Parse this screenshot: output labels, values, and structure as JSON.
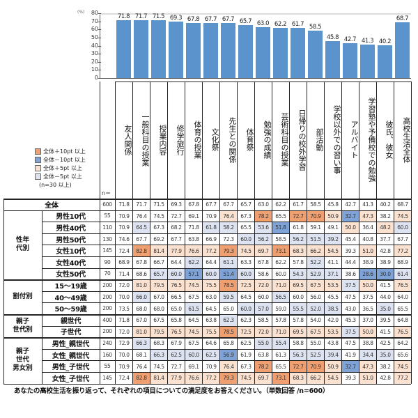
{
  "chart_data": {
    "type": "bar",
    "ylabel": "(%)",
    "ylim": [
      0,
      80
    ],
    "yticks": [
      0,
      10,
      20,
      30,
      40,
      50,
      60,
      70,
      80
    ],
    "grid": false,
    "categories": [
      "友人関係",
      "一般科目の授業",
      "授業内容",
      "修学旅行",
      "体育の授業",
      "文化祭",
      "先生との関係",
      "体育祭",
      "勉強の成績",
      "芸術科目の授業",
      "日帰りの校外学習",
      "部活動",
      "学校以外での習い事",
      "アルバイト",
      "学習塾や予備校での勉強",
      "彼氏、彼女",
      "高校生活全体"
    ],
    "values": [
      71.8,
      71.7,
      71.5,
      69.3,
      67.8,
      67.7,
      67.7,
      65.7,
      63.0,
      62.2,
      61.7,
      58.5,
      45.8,
      42.7,
      41.3,
      40.2,
      68.7
    ],
    "bar_color": "#5b93cc"
  },
  "legend": {
    "items": [
      {
        "label": "全体＋10pt 以上",
        "color": "#f0a070"
      },
      {
        "label": "全体－10pt 以上",
        "color": "#7fa3d6"
      },
      {
        "label": "全体＋5pt 以上",
        "color": "#fbe1cf"
      },
      {
        "label": "全体－5pt 以上",
        "color": "#dde3f0"
      }
    ],
    "note": "(n=30 以上)",
    "n_label": "n＝"
  },
  "table": {
    "total": {
      "label": "全体",
      "n": 600,
      "values": [
        71.8,
        71.7,
        71.5,
        69.3,
        67.8,
        67.7,
        67.7,
        65.7,
        63.0,
        62.2,
        61.7,
        58.5,
        45.8,
        42.7,
        41.3,
        40.2,
        68.7
      ]
    },
    "groups": [
      {
        "label": "性年\n代別",
        "rows": [
          {
            "label": "男性10代",
            "n": 55,
            "values": [
              70.9,
              76.4,
              74.5,
              72.7,
              69.1,
              70.9,
              76.4,
              67.3,
              78.2,
              65.5,
              72.7,
              70.9,
              50.9,
              32.7,
              47.3,
              38.2,
              74.5
            ]
          },
          {
            "label": "男性40代",
            "n": 110,
            "values": [
              70.9,
              64.5,
              67.3,
              68.2,
              71.8,
              61.8,
              58.2,
              65.5,
              53.6,
              51.8,
              61.8,
              59.1,
              49.1,
              50.0,
              36.4,
              48.2,
              60.0
            ]
          },
          {
            "label": "男性50代",
            "n": 130,
            "values": [
              74.6,
              67.7,
              69.2,
              67.7,
              63.8,
              66.9,
              72.3,
              60.0,
              56.2,
              58.5,
              56.2,
              51.5,
              39.2,
              45.4,
              40.8,
              37.7,
              67.7
            ]
          },
          {
            "label": "女性10代",
            "n": 145,
            "values": [
              72.4,
              82.8,
              81.4,
              77.9,
              76.6,
              77.2,
              79.3,
              74.5,
              69.7,
              73.1,
              68.3,
              66.2,
              54.5,
              39.3,
              51.0,
              42.8,
              77.2
            ]
          },
          {
            "label": "女性40代",
            "n": 90,
            "values": [
              68.9,
              67.8,
              66.7,
              64.4,
              62.2,
              64.4,
              61.1,
              63.3,
              67.8,
              62.2,
              57.8,
              52.2,
              41.1,
              44.4,
              38.9,
              38.9,
              68.9
            ]
          },
          {
            "label": "女性50代",
            "n": 70,
            "values": [
              71.4,
              68.6,
              65.7,
              60.0,
              57.1,
              60.0,
              51.4,
              60.0,
              58.6,
              60.0,
              54.3,
              52.9,
              37.1,
              38.6,
              28.6,
              30.0,
              61.4
            ]
          }
        ]
      },
      {
        "label": "割付別",
        "rows": [
          {
            "label": "15～19歳",
            "n": 200,
            "values": [
              72.0,
              81.0,
              79.5,
              76.5,
              74.5,
              75.5,
              78.5,
              72.5,
              72.0,
              71.0,
              69.5,
              67.5,
              53.5,
              37.5,
              50.0,
              41.5,
              76.5
            ]
          },
          {
            "label": "40～49歳",
            "n": 200,
            "values": [
              70.0,
              66.0,
              67.0,
              66.5,
              67.5,
              63.0,
              59.5,
              64.5,
              60.0,
              56.5,
              60.0,
              56.0,
              45.5,
              47.5,
              37.5,
              44.0,
              64.0
            ]
          },
          {
            "label": "50～59歳",
            "n": 200,
            "values": [
              73.5,
              68.0,
              68.0,
              65.0,
              61.5,
              64.5,
              65.0,
              60.0,
              57.0,
              59.0,
              55.5,
              52.0,
              38.5,
              43.0,
              36.5,
              35.0,
              65.5
            ]
          }
        ]
      },
      {
        "label": "親子\n世代別",
        "rows": [
          {
            "label": "親世代",
            "n": 400,
            "values": [
              71.8,
              67.0,
              67.5,
              65.8,
              64.5,
              63.8,
              62.3,
              62.3,
              58.5,
              57.8,
              57.8,
              54.0,
              42.0,
              45.3,
              37.0,
              39.5,
              64.8
            ]
          },
          {
            "label": "子世代",
            "n": 200,
            "values": [
              72.0,
              81.0,
              79.5,
              76.5,
              74.5,
              75.5,
              78.5,
              72.5,
              72.0,
              71.0,
              69.5,
              67.5,
              53.5,
              37.5,
              50.0,
              41.5,
              76.5
            ]
          }
        ]
      },
      {
        "label": "親子\n世代\n男女別",
        "rows": [
          {
            "label": "男性_親世代",
            "n": 240,
            "values": [
              72.9,
              66.3,
              68.3,
              67.9,
              67.5,
              64.6,
              65.8,
              62.5,
              55.0,
              55.4,
              58.8,
              55.0,
              43.8,
              47.5,
              38.8,
              42.5,
              64.2
            ]
          },
          {
            "label": "女性_親世代",
            "n": 160,
            "values": [
              70.0,
              68.1,
              66.3,
              62.5,
              60.0,
              62.5,
              56.9,
              61.9,
              63.8,
              61.3,
              56.3,
              52.5,
              39.4,
              41.9,
              34.4,
              35.0,
              65.6
            ]
          },
          {
            "label": "男性_子世代",
            "n": 55,
            "values": [
              70.9,
              76.4,
              74.5,
              72.7,
              69.1,
              70.9,
              76.4,
              67.3,
              78.2,
              65.5,
              72.7,
              70.9,
              50.9,
              32.7,
              47.3,
              38.2,
              74.5
            ]
          },
          {
            "label": "女性_子世代",
            "n": 145,
            "values": [
              72.4,
              82.8,
              81.4,
              77.9,
              76.6,
              77.2,
              79.3,
              74.5,
              69.7,
              73.1,
              68.3,
              66.2,
              54.5,
              39.3,
              51.0,
              42.8,
              77.2
            ]
          }
        ]
      }
    ]
  },
  "footer": "あなたの高校生活を振り返って、それぞれの項目についての満足度をお答えください。（単数回答 /n=600）"
}
